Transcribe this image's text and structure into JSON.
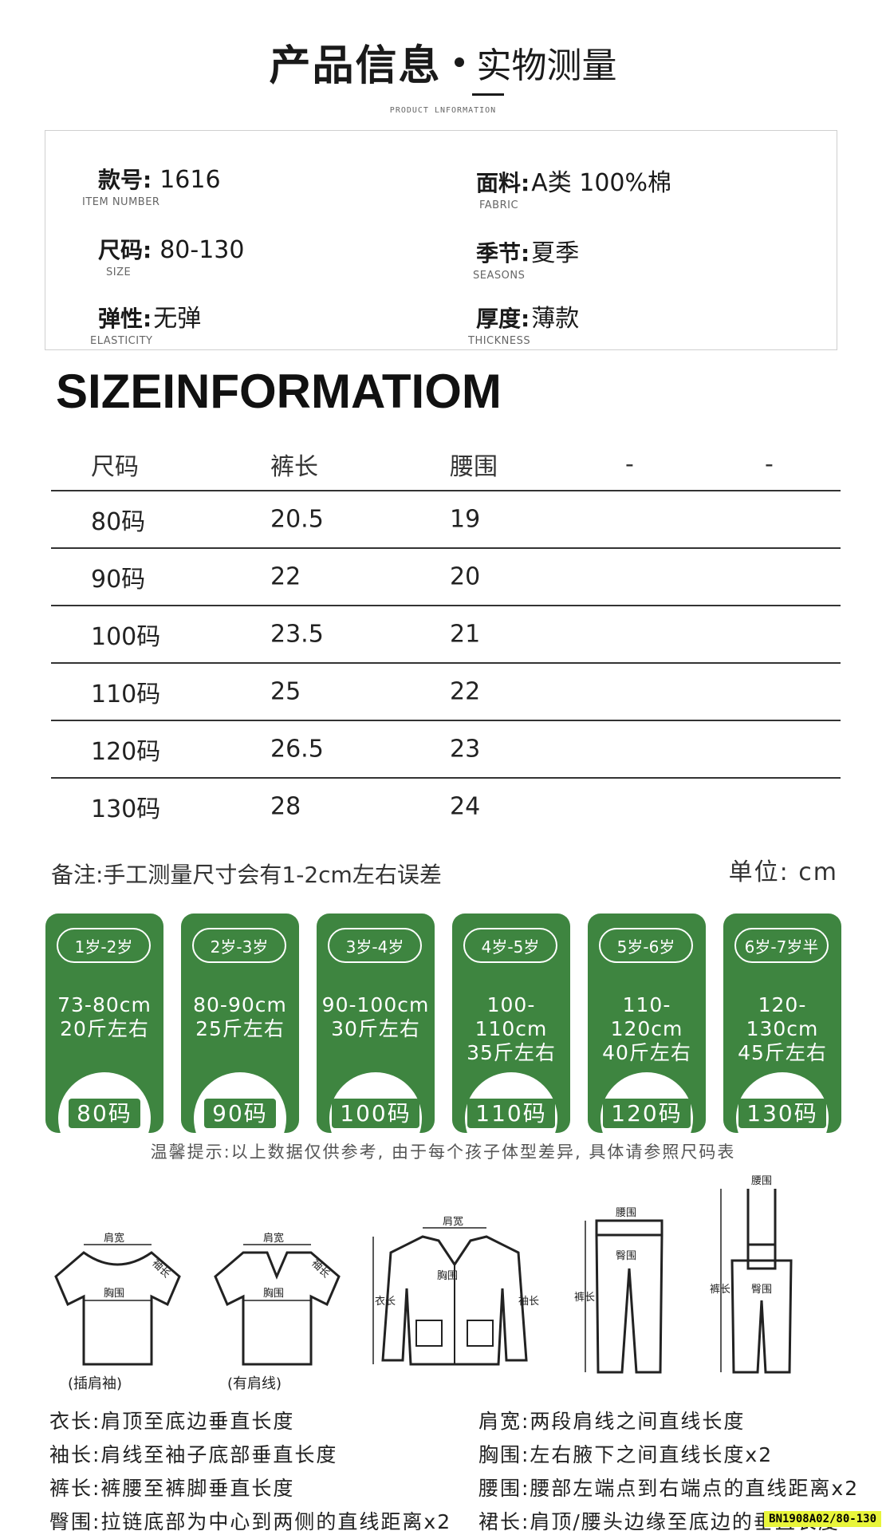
{
  "header": {
    "title": "产品信息",
    "subtitle": "实物测量",
    "english": "PRODUCT LNFORMATION"
  },
  "info": {
    "item_number": {
      "label": "款号:",
      "value": "1616",
      "en": "ITEM NUMBER"
    },
    "fabric": {
      "label": "面料:",
      "value": "A类  100%棉",
      "en": "FABRIC"
    },
    "size": {
      "label": "尺码:",
      "value": "80-130",
      "en": "SIZE"
    },
    "season": {
      "label": "季节:",
      "value": "夏季",
      "en": "SEASONS"
    },
    "elasticity": {
      "label": "弹性:",
      "value": "无弹",
      "en": "ELASTICITY"
    },
    "thickness": {
      "label": "厚度:",
      "value": "薄款",
      "en": "THICKNESS"
    }
  },
  "size_table": {
    "heading": "SIZEINFORMATIOM",
    "headers": [
      "尺码",
      "裤长",
      "腰围",
      "-",
      "-"
    ],
    "rows": [
      [
        "80码",
        "20.5",
        "19"
      ],
      [
        "90码",
        "22",
        "20"
      ],
      [
        "100码",
        "23.5",
        "21"
      ],
      [
        "110码",
        "25",
        "22"
      ],
      [
        "120码",
        "26.5",
        "23"
      ],
      [
        "130码",
        "28",
        "24"
      ]
    ]
  },
  "note": "备注:手工测量尺寸会有1-2cm左右误差",
  "unit": "单位: cm",
  "age_cards": [
    {
      "age": "1岁-2岁",
      "height": "73-80cm",
      "weight": "20斤左右",
      "size": "80码"
    },
    {
      "age": "2岁-3岁",
      "height": "80-90cm",
      "weight": "25斤左右",
      "size": "90码"
    },
    {
      "age": "3岁-4岁",
      "height": "90-100cm",
      "weight": "30斤左右",
      "size": "100码"
    },
    {
      "age": "4岁-5岁",
      "height": "100-110cm",
      "weight": "35斤左右",
      "size": "110码"
    },
    {
      "age": "5岁-6岁",
      "height": "110-120cm",
      "weight": "40斤左右",
      "size": "120码"
    },
    {
      "age": "6岁-7岁半",
      "height": "120-130cm",
      "weight": "45斤左右",
      "size": "130码"
    }
  ],
  "card_color": "#3e8540",
  "tip": "温馨提示:以上数据仅供参考, 由于每个孩子体型差异, 具体请参照尺码表",
  "diagram_labels": {
    "shoulder_width": "肩宽",
    "sleeve_length": "袖长",
    "chest": "胸围",
    "raglan": "(插肩袖)",
    "set_in": "(有肩线)",
    "body_length": "衣长",
    "waist": "腰围",
    "hip": "臀围",
    "pants_length": "裤长"
  },
  "definitions": {
    "body_length": "衣长:肩顶至底边垂直长度",
    "shoulder_width": "肩宽:两段肩线之间直线长度",
    "sleeve_length": "袖长:肩线至袖子底部垂直长度",
    "chest": "胸围:左右腋下之间直线长度x2",
    "pants_length": "裤长:裤腰至裤脚垂直长度",
    "waist": "腰围:腰部左端点到右端点的直线距离x2",
    "hip": "臀围:拉链底部为中心到两侧的直线距离x2",
    "skirt_length": "裙长:肩顶/腰头边缘至底边的垂直长度"
  },
  "product_code": "BN1908A02/80-130"
}
